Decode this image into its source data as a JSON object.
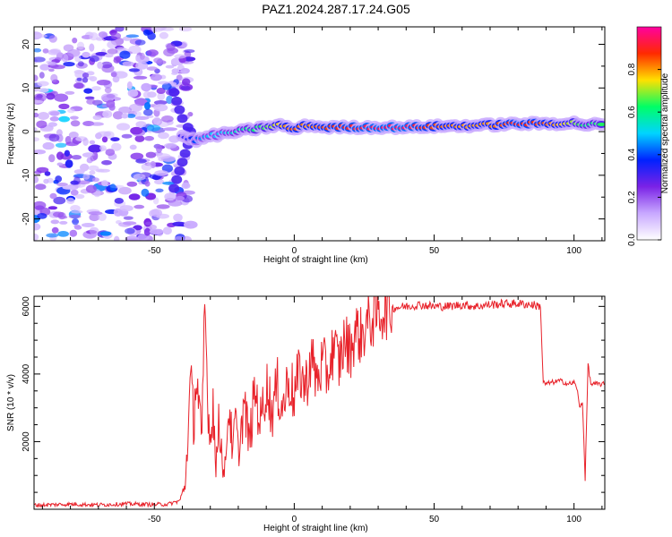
{
  "page": {
    "title": "PAZ1.2024.287.17.24.G05"
  },
  "chart_data": [
    {
      "type": "heatmap",
      "title": "PAZ1.2024.287.17.24.G05",
      "xlabel": "Height of straight line (km)",
      "ylabel": "Frequency (Hz)",
      "xlim": [
        -93,
        111
      ],
      "ylim": [
        -25,
        24
      ],
      "x_ticks": [
        -50,
        0,
        50,
        100
      ],
      "y_ticks": [
        -20,
        -10,
        0,
        10,
        20
      ],
      "colorbar": {
        "label": "Normalized spectral amplitude",
        "range": [
          0,
          1
        ],
        "ticks": [
          0.0,
          0.2,
          0.4,
          0.6,
          0.8
        ],
        "colors": [
          "#ffffff",
          "#c8a8ff",
          "#7a22e6",
          "#0022ff",
          "#00d4ff",
          "#00ff66",
          "#ffe000",
          "#ff2a00",
          "#ff00a0"
        ]
      },
      "ridge": {
        "x": [
          -40,
          -35,
          -30,
          -25,
          -20,
          -15,
          -10,
          -5,
          0,
          5,
          10,
          20,
          30,
          40,
          50,
          60,
          70,
          80,
          90,
          100,
          105,
          111
        ],
        "frequency": [
          -1,
          -2,
          -1,
          -0.5,
          0,
          0.5,
          1,
          1.5,
          0.5,
          1.5,
          1,
          1,
          1,
          1,
          1.2,
          1.3,
          1.5,
          1.8,
          1.8,
          2,
          1.5,
          1.8
        ],
        "amplitude": [
          0.3,
          0.4,
          0.5,
          0.5,
          0.55,
          0.6,
          0.65,
          0.75,
          0.85,
          0.8,
          0.85,
          0.9,
          0.95,
          0.95,
          0.85,
          0.8,
          0.8,
          0.9,
          0.85,
          0.7,
          0.6,
          0.65
        ]
      },
      "noise_region_x": [
        -93,
        -40
      ],
      "noise_amplitude": 0.25,
      "grid": false
    },
    {
      "type": "line",
      "xlabel": "Height of straight line (km)",
      "ylabel": "SNR (10 * v/v)",
      "xlim": [
        -93,
        111
      ],
      "ylim": [
        0,
        6300
      ],
      "x_ticks": [
        -50,
        0,
        50,
        100
      ],
      "y_ticks": [
        2000,
        4000,
        6000
      ],
      "color": "#e8222a",
      "grid": false,
      "series": [
        {
          "x": [
            -93,
            -80,
            -70,
            -60,
            -50,
            -45,
            -41,
            -39,
            -37,
            -36,
            -35,
            -34,
            -33,
            -32,
            -31,
            -30,
            -29,
            -28,
            -27,
            -26,
            -25,
            -24,
            -23,
            -22,
            -21,
            -20,
            -18,
            -16,
            -14,
            -12,
            -10,
            -8,
            -6,
            -4,
            -2,
            0,
            2,
            4,
            6,
            8,
            10,
            12,
            14,
            16,
            18,
            20,
            22,
            24,
            26,
            28,
            30,
            35,
            40,
            45,
            50,
            55,
            60,
            65,
            70,
            75,
            80,
            85,
            88,
            89,
            90,
            92,
            95,
            98,
            100,
            101,
            102,
            103,
            104,
            105,
            106,
            108,
            111
          ],
          "y": [
            120,
            150,
            130,
            160,
            140,
            150,
            250,
            700,
            3800,
            2600,
            4000,
            3000,
            1800,
            6200,
            3500,
            2000,
            3300,
            1000,
            2800,
            1800,
            800,
            2500,
            3000,
            1500,
            2800,
            1600,
            3100,
            2000,
            3500,
            2600,
            3700,
            2900,
            3600,
            3000,
            3900,
            3300,
            4100,
            3600,
            4500,
            3800,
            4300,
            4000,
            4800,
            4300,
            5000,
            4700,
            5300,
            5100,
            5500,
            5600,
            5800,
            5950,
            6000,
            6050,
            6000,
            6000,
            6050,
            6000,
            6050,
            6080,
            6080,
            6050,
            6000,
            3750,
            3700,
            3750,
            3800,
            3700,
            3750,
            3600,
            3000,
            3200,
            900,
            4300,
            3700,
            3700,
            3700
          ]
        }
      ]
    }
  ]
}
